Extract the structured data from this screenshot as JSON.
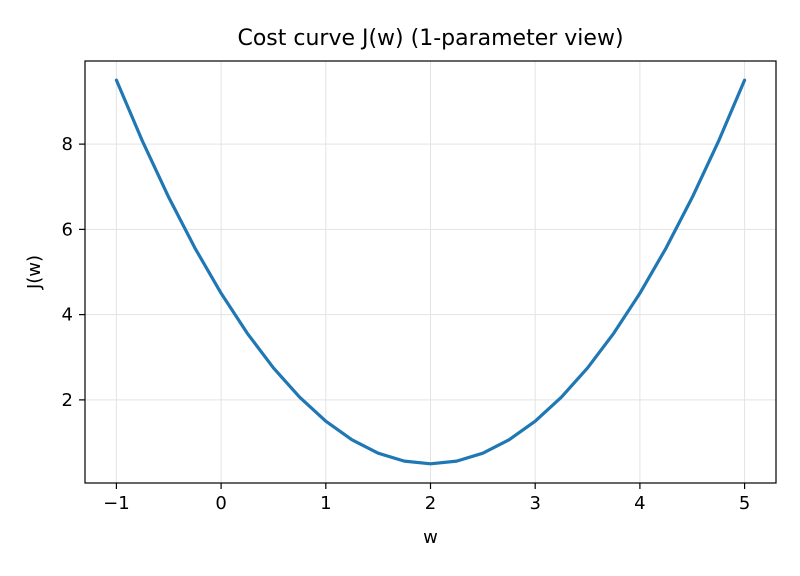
{
  "chart_data": {
    "type": "line",
    "title": "Cost curve J(w) (1-parameter view)",
    "xlabel": "w",
    "ylabel": "J(w)",
    "xlim": [
      -1.3,
      5.3
    ],
    "ylim": [
      0.05,
      9.95
    ],
    "x_ticks": [
      {
        "value": -1,
        "label": "−1"
      },
      {
        "value": 0,
        "label": "0"
      },
      {
        "value": 1,
        "label": "1"
      },
      {
        "value": 2,
        "label": "2"
      },
      {
        "value": 3,
        "label": "3"
      },
      {
        "value": 4,
        "label": "4"
      },
      {
        "value": 5,
        "label": "5"
      }
    ],
    "y_ticks": [
      {
        "value": 2,
        "label": "2"
      },
      {
        "value": 4,
        "label": "4"
      },
      {
        "value": 6,
        "label": "6"
      },
      {
        "value": 8,
        "label": "8"
      }
    ],
    "grid": true,
    "legend": "none",
    "series": [
      {
        "color": "#1f77b4",
        "x": [
          -1.0,
          -0.75,
          -0.5,
          -0.25,
          0.0,
          0.25,
          0.5,
          0.75,
          1.0,
          1.25,
          1.5,
          1.75,
          2.0,
          2.25,
          2.5,
          2.75,
          3.0,
          3.25,
          3.5,
          3.75,
          4.0,
          4.25,
          4.5,
          4.75,
          5.0
        ],
        "y": [
          9.5,
          8.0625,
          6.75,
          5.5625,
          4.5,
          3.5625,
          2.75,
          2.0625,
          1.5,
          1.0625,
          0.75,
          0.5625,
          0.5,
          0.5625,
          0.75,
          1.0625,
          1.5,
          2.0625,
          2.75,
          3.5625,
          4.5,
          5.5625,
          6.75,
          8.0625,
          9.5
        ]
      }
    ]
  }
}
